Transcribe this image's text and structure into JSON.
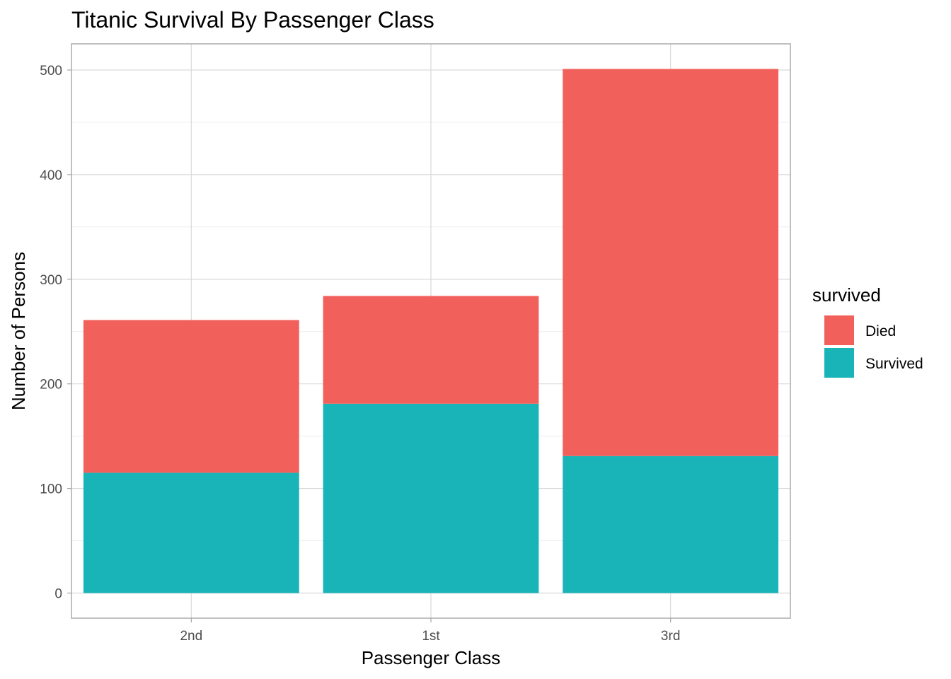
{
  "chart_data": {
    "type": "bar",
    "stacked": true,
    "title": "Titanic Survival By Passenger Class",
    "xlabel": "Passenger Class",
    "ylabel": "Number of Persons",
    "categories": [
      "2nd",
      "1st",
      "3rd"
    ],
    "series": [
      {
        "name": "Survived",
        "values": [
          115,
          181,
          131
        ],
        "color": "#19b4b8"
      },
      {
        "name": "Died",
        "values": [
          146,
          103,
          370
        ],
        "color": "#f2605c"
      }
    ],
    "ylim": [
      -24,
      525
    ],
    "yticks": [
      0,
      100,
      200,
      300,
      400,
      500
    ],
    "grid": true,
    "legend": {
      "title": "survived",
      "position": "right",
      "items": [
        {
          "label": "Died",
          "color": "#f2605c"
        },
        {
          "label": "Survived",
          "color": "#19b4b8"
        }
      ]
    }
  }
}
